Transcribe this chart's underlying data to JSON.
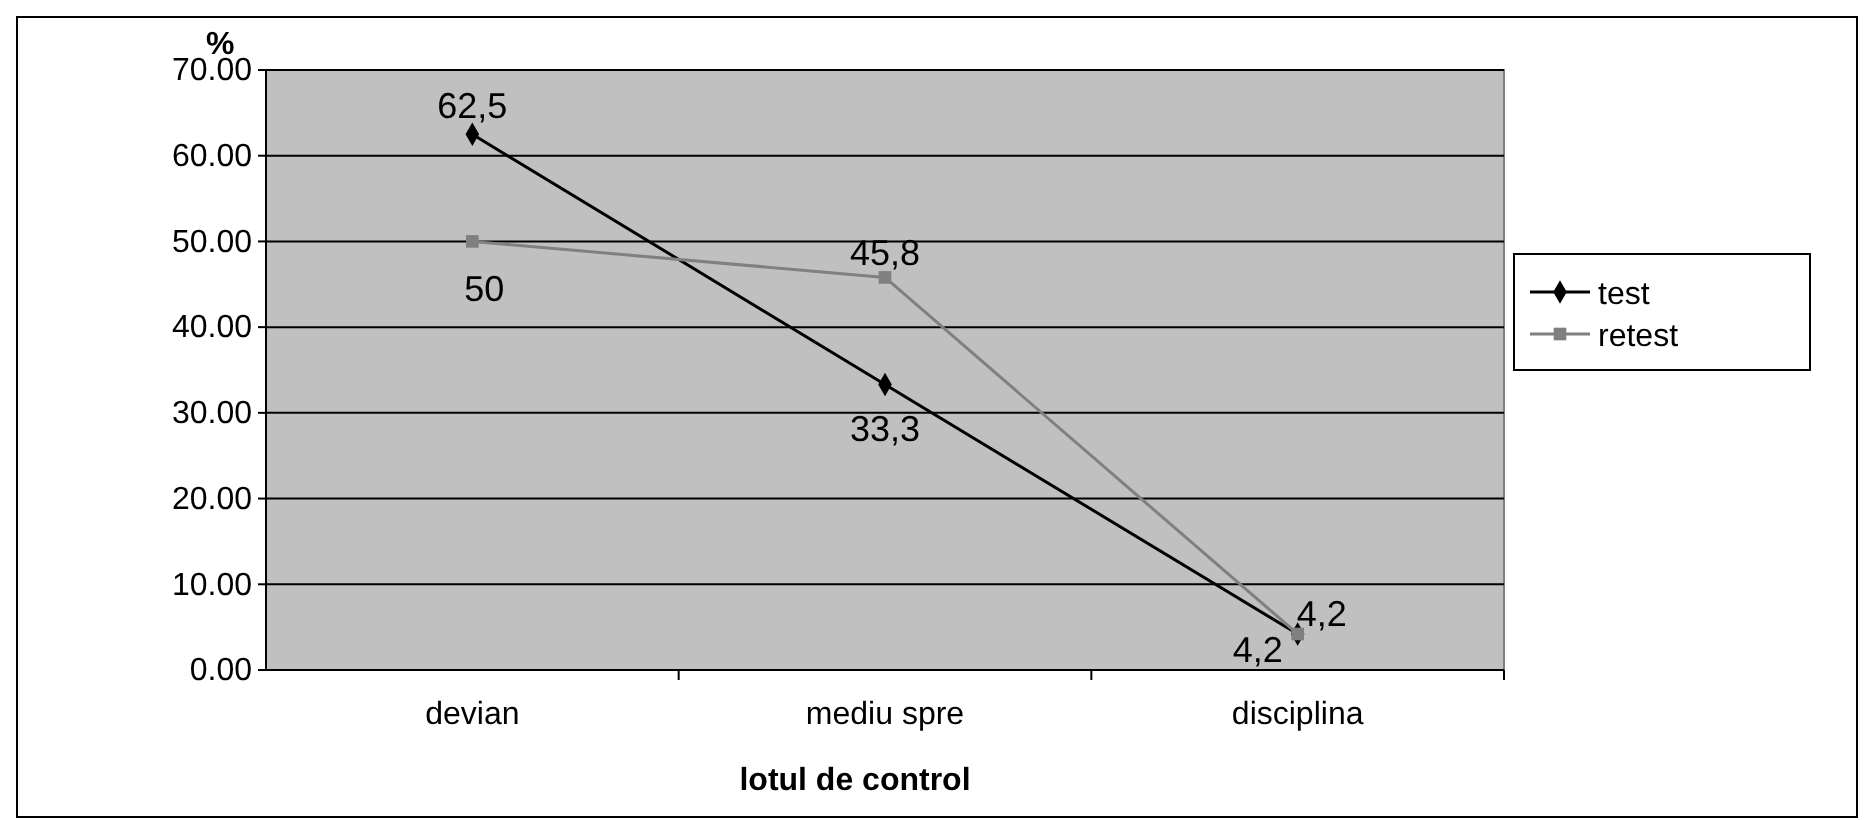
{
  "chart_data": {
    "type": "line",
    "ylabel": "%",
    "xlabel": "lotul de control",
    "categories": [
      "devian",
      "mediu spre",
      "disciplina"
    ],
    "series": [
      {
        "name": "test",
        "color": "#000000",
        "marker": "diamond",
        "values": [
          62.5,
          33.3,
          4.2
        ],
        "value_labels": [
          "62,5",
          "33,3",
          "4,2"
        ]
      },
      {
        "name": "retest",
        "color": "#808080",
        "marker": "square",
        "values": [
          50,
          45.8,
          4.2
        ],
        "value_labels": [
          "50",
          "45,8",
          "4,2"
        ]
      }
    ],
    "ylim": [
      0,
      70
    ],
    "yticks": [
      {
        "value": 0,
        "label": "0.00"
      },
      {
        "value": 10,
        "label": "10.00"
      },
      {
        "value": 20,
        "label": "20.00"
      },
      {
        "value": 30,
        "label": "30.00"
      },
      {
        "value": 40,
        "label": "40.00"
      },
      {
        "value": 50,
        "label": "50.00"
      },
      {
        "value": 60,
        "label": "60.00"
      },
      {
        "value": 70,
        "label": "70.00"
      }
    ],
    "grid": "y",
    "legend": "right"
  }
}
